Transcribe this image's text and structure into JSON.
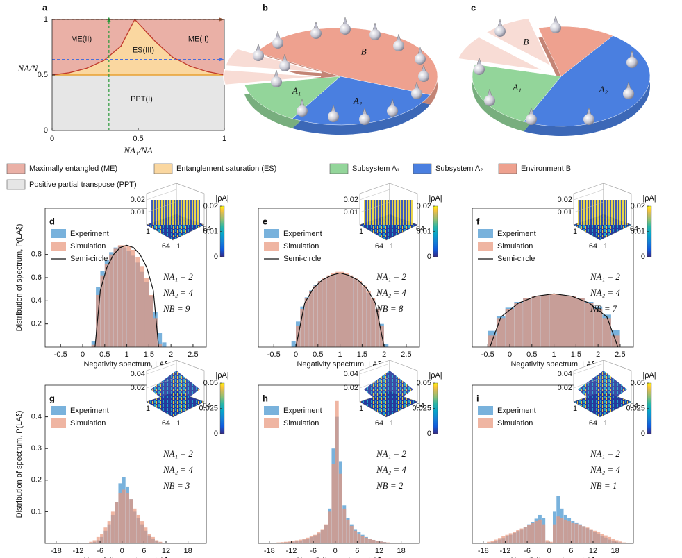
{
  "chart_data": [
    {
      "type": "phase",
      "label": "a",
      "xlim": [
        0,
        1
      ],
      "ylim": [
        0,
        1
      ],
      "xticks": [
        0,
        0.5,
        1
      ],
      "yticks": [
        0,
        0.5,
        1
      ],
      "xlabel": "NA₁/NA",
      "ylabel": "NA/N",
      "legend": [
        {
          "name": "Maximally entangled (ME)",
          "color": "#eab0a6"
        },
        {
          "name": "Entanglement saturation (ES)",
          "color": "#fad7a0"
        },
        {
          "name": "Positive partial transpose (PPT)",
          "color": "#e6e6e6"
        }
      ],
      "region_labels": [
        "ME(II)",
        "ME(II)",
        "ES(III)",
        "PPT(I)"
      ],
      "ppt_level": 0.5,
      "ppt_line_color": "#e8a030",
      "boundary": {
        "x": [
          0,
          0.1,
          0.2,
          0.3,
          0.4,
          0.48,
          0.6,
          0.7,
          0.8,
          0.9,
          1
        ],
        "values": [
          0.5,
          0.52,
          0.56,
          0.63,
          0.76,
          1,
          0.8,
          0.66,
          0.58,
          0.53,
          0.5
        ],
        "color": "#c0392b"
      },
      "guides": [
        {
          "axis": "x",
          "value": 0.33,
          "color": "#2a9a3a"
        },
        {
          "axis": "y",
          "value": 0.64,
          "color": "#4a6fd8"
        },
        {
          "axis": "y",
          "value": 1,
          "color": "#9c5a3a"
        }
      ]
    },
    {
      "type": "pie3d",
      "label": "b",
      "categories": [
        null,
        null,
        "B",
        "A₂",
        "A₁"
      ],
      "values": [
        5,
        6,
        48,
        27,
        14
      ],
      "colors": [
        "#f8dcd5",
        "#f8dcd5",
        "#eea18f",
        "#4a7fe0",
        "#93d59a"
      ],
      "exploded": [
        true,
        true,
        false,
        false,
        false
      ]
    },
    {
      "type": "pie3d",
      "label": "c",
      "categories": [
        null,
        "B",
        null,
        "A₂",
        "A₁"
      ],
      "values": [
        8,
        9,
        14,
        47,
        22
      ],
      "colors": [
        "#f8dcd5",
        "#f8dcd5",
        "#eea18f",
        "#4a7fe0",
        "#93d59a"
      ],
      "exploded": [
        true,
        true,
        false,
        false,
        false
      ]
    },
    {
      "type": "legend",
      "series": [
        {
          "name": "Subsystem A₁",
          "color": "#93d59a"
        },
        {
          "name": "Subsystem A₂",
          "color": "#4a7fe0"
        },
        {
          "name": "Environment B",
          "color": "#eea18f"
        }
      ]
    },
    {
      "type": "histogram",
      "label": "d",
      "xlim": [
        -0.85,
        2.8
      ],
      "ylim": [
        0,
        1.2
      ],
      "xticks": [
        -0.5,
        0,
        0.5,
        1,
        1.5,
        2,
        2.5
      ],
      "yticks": [
        0.2,
        0.4,
        0.6,
        0.8
      ],
      "xlabel": "Negativity spectrum, LAξ",
      "ylabel": "Distribution of spectrum, P(LAξ)",
      "bins": [
        0.2,
        0.3,
        0.4,
        0.5,
        0.6,
        0.7,
        0.8,
        0.9,
        1.0,
        1.1,
        1.2,
        1.3,
        1.4,
        1.5,
        1.6,
        1.7,
        1.8,
        1.9
      ],
      "series": [
        {
          "name": "Experiment",
          "color": "#6aaad8",
          "values": [
            0.05,
            0.52,
            0.66,
            0.75,
            0.82,
            0.86,
            0.87,
            0.86,
            0.83,
            0.79,
            0.73,
            0.65,
            0.56,
            0.44,
            0.3,
            0.12,
            0.04
          ]
        },
        {
          "name": "Simulation",
          "color": "#e8957a",
          "values": [
            0.02,
            0.45,
            0.62,
            0.72,
            0.8,
            0.85,
            0.88,
            0.88,
            0.87,
            0.84,
            0.78,
            0.7,
            0.6,
            0.45,
            0.25,
            0.03,
            0
          ]
        }
      ],
      "line": {
        "name": "Semi-circle",
        "color": "#111111",
        "x": [
          0.28,
          0.4,
          0.55,
          0.7,
          0.85,
          1,
          1.15,
          1.3,
          1.45,
          1.6,
          1.72
        ],
        "values": [
          0,
          0.49,
          0.69,
          0.8,
          0.86,
          0.88,
          0.86,
          0.8,
          0.69,
          0.49,
          0
        ]
      },
      "annotations": [
        "NA₁ = 2",
        "NA₂ = 4",
        "NB = 9"
      ],
      "inset": {
        "zlim": [
          0,
          0.025
        ],
        "zticks": [
          0.01,
          0.02
        ],
        "edge_labels": [
          "1",
          "64",
          "64",
          "1"
        ],
        "colorbar": {
          "label": "|ρA|",
          "clim": [
            0,
            0.02
          ],
          "ticks": [
            0,
            0.01,
            0.02
          ]
        }
      }
    },
    {
      "type": "histogram",
      "label": "e",
      "xlim": [
        -0.85,
        2.8
      ],
      "ylim": [
        0,
        1.2
      ],
      "xticks": [
        -0.5,
        0,
        0.5,
        1,
        1.5,
        2,
        2.5
      ],
      "xlabel": "Negativity spectrum, LAξ",
      "bins": [
        -0.1,
        0,
        0.1,
        0.2,
        0.3,
        0.4,
        0.5,
        0.6,
        0.7,
        0.8,
        0.9,
        1.0,
        1.1,
        1.2,
        1.3,
        1.4,
        1.5,
        1.6,
        1.7,
        1.8,
        1.9,
        2.0,
        2.1
      ],
      "series": [
        {
          "name": "Experiment",
          "color": "#6aaad8",
          "values": [
            0.05,
            0.22,
            0.35,
            0.43,
            0.49,
            0.54,
            0.57,
            0.59,
            0.61,
            0.62,
            0.63,
            0.63,
            0.62,
            0.61,
            0.59,
            0.56,
            0.52,
            0.47,
            0.41,
            0.33,
            0.2,
            0.03
          ]
        },
        {
          "name": "Simulation",
          "color": "#e8957a",
          "values": [
            0,
            0.18,
            0.33,
            0.42,
            0.48,
            0.53,
            0.57,
            0.6,
            0.62,
            0.64,
            0.65,
            0.65,
            0.64,
            0.62,
            0.6,
            0.57,
            0.53,
            0.48,
            0.42,
            0.33,
            0.18,
            0
          ]
        }
      ],
      "line": {
        "name": "Semi-circle",
        "color": "#111111",
        "x": [
          0,
          0.2,
          0.4,
          0.6,
          0.8,
          1,
          1.2,
          1.4,
          1.6,
          1.8,
          2
        ],
        "values": [
          0,
          0.38,
          0.51,
          0.58,
          0.62,
          0.64,
          0.62,
          0.58,
          0.51,
          0.38,
          0
        ]
      },
      "annotations": [
        "NA₁ = 2",
        "NA₂ = 4",
        "NB = 8"
      ],
      "inset": {
        "zlim": [
          0,
          0.025
        ],
        "zticks": [
          0.01,
          0.02
        ],
        "edge_labels": [
          "1",
          "64",
          "64",
          "1"
        ],
        "colorbar": {
          "label": "|ρA|",
          "clim": [
            0,
            0.02
          ],
          "ticks": [
            0,
            0.01,
            0.02
          ]
        }
      }
    },
    {
      "type": "histogram",
      "label": "f",
      "xlim": [
        -0.85,
        2.8
      ],
      "ylim": [
        0,
        1.2
      ],
      "xticks": [
        -0.5,
        0,
        0.5,
        1,
        1.5,
        2,
        2.5
      ],
      "xlabel": "Negativity spectrum, LAξ",
      "bins": [
        -0.5,
        -0.3,
        -0.1,
        0.1,
        0.3,
        0.5,
        0.7,
        0.9,
        1.1,
        1.3,
        1.5,
        1.7,
        1.9,
        2.1,
        2.3,
        2.5
      ],
      "series": [
        {
          "name": "Experiment",
          "color": "#6aaad8",
          "values": [
            0.14,
            0.27,
            0.34,
            0.39,
            0.42,
            0.44,
            0.45,
            0.45,
            0.45,
            0.44,
            0.42,
            0.39,
            0.35,
            0.28,
            0.15
          ]
        },
        {
          "name": "Simulation",
          "color": "#e8957a",
          "values": [
            0.1,
            0.25,
            0.33,
            0.38,
            0.42,
            0.44,
            0.45,
            0.46,
            0.45,
            0.44,
            0.42,
            0.38,
            0.33,
            0.25,
            0.1
          ]
        }
      ],
      "line": {
        "name": "Semi-circle",
        "color": "#111111",
        "x": [
          -0.45,
          -0.2,
          0.2,
          0.6,
          1,
          1.4,
          1.8,
          2.2,
          2.45
        ],
        "values": [
          0,
          0.26,
          0.38,
          0.44,
          0.46,
          0.44,
          0.38,
          0.26,
          0
        ]
      },
      "annotations": [
        "NA₁ = 2",
        "NA₂ = 4",
        "NB = 7"
      ],
      "inset": {
        "zlim": [
          0,
          0.025
        ],
        "zticks": [
          0.01,
          0.02
        ],
        "edge_labels": [
          "1",
          "64",
          "64",
          "1"
        ],
        "colorbar": {
          "label": "|ρA|",
          "clim": [
            0,
            0.02
          ],
          "ticks": [
            0,
            0.01,
            0.02
          ]
        }
      }
    },
    {
      "type": "histogram",
      "label": "g",
      "xlim": [
        -21,
        23
      ],
      "ylim": [
        0,
        0.5
      ],
      "xticks": [
        -18,
        -12,
        -6,
        0,
        6,
        12,
        18
      ],
      "yticks": [
        0.1,
        0.2,
        0.3,
        0.4
      ],
      "xlabel": "Negativity spectrum, LAξ",
      "ylabel": "Distribution of spectrum, P(LAξ)",
      "bins": [
        -9,
        -8,
        -7,
        -6,
        -5,
        -4,
        -3,
        -2,
        -1,
        0,
        1,
        2,
        3,
        4,
        5,
        6,
        7,
        8,
        9,
        10,
        11
      ],
      "series": [
        {
          "name": "Experiment",
          "color": "#6aaad8",
          "values": [
            0.002,
            0.005,
            0.01,
            0.02,
            0.04,
            0.06,
            0.09,
            0.13,
            0.19,
            0.21,
            0.18,
            0.14,
            0.1,
            0.08,
            0.06,
            0.04,
            0.025,
            0.015,
            0.007,
            0.003
          ]
        },
        {
          "name": "Simulation",
          "color": "#e8957a",
          "values": [
            0.005,
            0.01,
            0.02,
            0.03,
            0.05,
            0.07,
            0.1,
            0.13,
            0.16,
            0.17,
            0.16,
            0.14,
            0.11,
            0.09,
            0.07,
            0.05,
            0.03,
            0.02,
            0.01,
            0.005
          ]
        }
      ],
      "annotations": [
        "NA₁ = 2",
        "NA₂ = 4",
        "NB = 3"
      ],
      "inset": {
        "zlim": [
          0,
          0.045
        ],
        "zticks": [
          0.02,
          0.04
        ],
        "edge_labels": [
          "1",
          "64",
          "64",
          "1"
        ],
        "colorbar": {
          "label": "|ρA|",
          "clim": [
            0,
            0.05
          ],
          "ticks": [
            0,
            0.025,
            0.05
          ]
        }
      }
    },
    {
      "type": "histogram",
      "label": "h",
      "xlim": [
        -21,
        23
      ],
      "ylim": [
        0,
        0.5
      ],
      "xticks": [
        -18,
        -12,
        -6,
        0,
        6,
        12,
        18
      ],
      "xlabel": "Negativity spectrum, LAξ",
      "bins": [
        -16,
        -15,
        -14,
        -13,
        -12,
        -11,
        -10,
        -9,
        -8,
        -7,
        -6,
        -5,
        -4,
        -3,
        -2,
        -1,
        0,
        1,
        2,
        3,
        4,
        5,
        6,
        7,
        8,
        9,
        10,
        11,
        12,
        13,
        14,
        15,
        16
      ],
      "series": [
        {
          "name": "Experiment",
          "color": "#6aaad8",
          "values": [
            0.001,
            0.002,
            0.003,
            0.004,
            0.005,
            0.007,
            0.009,
            0.012,
            0.015,
            0.02,
            0.025,
            0.032,
            0.042,
            0.058,
            0.11,
            0.3,
            0.4,
            0.26,
            0.12,
            0.08,
            0.06,
            0.045,
            0.035,
            0.027,
            0.02,
            0.015,
            0.011,
            0.008,
            0.006,
            0.004,
            0.002,
            0.001
          ]
        },
        {
          "name": "Simulation",
          "color": "#e8957a",
          "values": [
            0.003,
            0.004,
            0.005,
            0.006,
            0.008,
            0.01,
            0.012,
            0.015,
            0.018,
            0.022,
            0.027,
            0.035,
            0.045,
            0.06,
            0.1,
            0.25,
            0.45,
            0.22,
            0.11,
            0.075,
            0.055,
            0.04,
            0.03,
            0.024,
            0.018,
            0.014,
            0.011,
            0.008,
            0.006,
            0.004,
            0.003,
            0.002
          ]
        }
      ],
      "annotations": [
        "NA₁ = 2",
        "NA₂ = 4",
        "NB = 2"
      ],
      "inset": {
        "zlim": [
          0,
          0.045
        ],
        "zticks": [
          0.02,
          0.04
        ],
        "edge_labels": [
          "1",
          "64",
          "64",
          "1"
        ],
        "colorbar": {
          "label": "|ρA|",
          "clim": [
            0,
            0.05
          ],
          "ticks": [
            0,
            0.025,
            0.05
          ]
        }
      }
    },
    {
      "type": "histogram",
      "label": "i",
      "xlim": [
        -21,
        23
      ],
      "ylim": [
        0,
        0.5
      ],
      "xticks": [
        -18,
        -12,
        -6,
        0,
        6,
        12,
        18
      ],
      "xlabel": "Negativity spectrum, LAξ",
      "bins": [
        -17,
        -16,
        -15,
        -14,
        -13,
        -12,
        -11,
        -10,
        -9,
        -8,
        -7,
        -6,
        -5,
        -4,
        -3,
        -2,
        -1,
        0,
        1,
        2,
        3,
        4,
        5,
        6,
        7,
        8,
        9,
        10,
        11,
        12,
        13,
        14,
        15,
        16,
        17,
        18,
        19,
        20,
        21
      ],
      "series": [
        {
          "name": "Experiment",
          "color": "#6aaad8",
          "values": [
            0.002,
            0.004,
            0.008,
            0.012,
            0.017,
            0.022,
            0.027,
            0.033,
            0.039,
            0.045,
            0.052,
            0.06,
            0.068,
            0.078,
            0.09,
            0.08,
            0.005,
            0.002,
            0.1,
            0.15,
            0.11,
            0.09,
            0.08,
            0.072,
            0.066,
            0.06,
            0.054,
            0.048,
            0.042,
            0.036,
            0.03,
            0.024,
            0.018,
            0.012,
            0.008,
            0.005,
            0.003,
            0.001
          ]
        },
        {
          "name": "Simulation",
          "color": "#e8957a",
          "values": [
            0.005,
            0.008,
            0.012,
            0.017,
            0.022,
            0.027,
            0.032,
            0.037,
            0.042,
            0.047,
            0.052,
            0.058,
            0.064,
            0.07,
            0.075,
            0.06,
            0.01,
            0.005,
            0.06,
            0.085,
            0.08,
            0.075,
            0.07,
            0.066,
            0.062,
            0.058,
            0.054,
            0.05,
            0.045,
            0.04,
            0.035,
            0.03,
            0.025,
            0.02,
            0.015,
            0.01,
            0.006,
            0.003
          ]
        }
      ],
      "annotations": [
        "NA₁ = 2",
        "NA₂ = 4",
        "NB = 1"
      ],
      "inset": {
        "zlim": [
          0,
          0.045
        ],
        "zticks": [
          0.02,
          0.04
        ],
        "edge_labels": [
          "1",
          "64",
          "64",
          "1"
        ],
        "colorbar": {
          "label": "|ρA|",
          "clim": [
            0,
            0.05
          ],
          "ticks": [
            0,
            0.025,
            0.05
          ]
        }
      }
    }
  ]
}
